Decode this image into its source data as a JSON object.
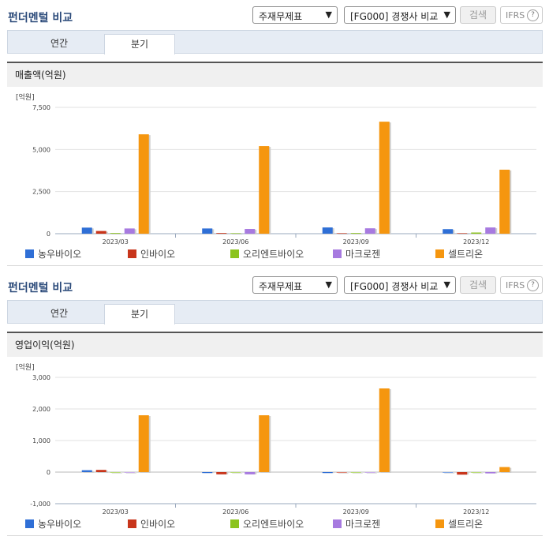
{
  "colors": {
    "농우바이오": "#2f6fd6",
    "인바이오": "#c8351b",
    "오리엔트바이오": "#8cc41f",
    "마크로젠": "#a77ae0",
    "셀트리온": "#f5960f"
  },
  "panels": [
    {
      "title": "펀더멘털 비교",
      "select_a": "주재무제표",
      "select_b": "[FG000] 경쟁사 비교",
      "search_label": "검색",
      "ifrs_label": "IFRS",
      "help_glyph": "?",
      "tabs": [
        "연간",
        "분기"
      ],
      "active_tab": "분기",
      "section_title": "매출액(억원)",
      "unit": "[억원]"
    },
    {
      "title": "펀더멘털 비교",
      "select_a": "주재무제표",
      "select_b": "[FG000] 경쟁사 비교",
      "search_label": "검색",
      "ifrs_label": "IFRS",
      "help_glyph": "?",
      "tabs": [
        "연간",
        "분기"
      ],
      "active_tab": "분기",
      "section_title": "영업이익(억원)",
      "unit": "[억원]"
    }
  ],
  "chart_data": [
    {
      "type": "bar",
      "title": "매출액(억원)",
      "ylabel": "[억원]",
      "categories": [
        "2023/03",
        "2023/06",
        "2023/09",
        "2023/12"
      ],
      "ylim": [
        0,
        7500
      ],
      "yticks": [
        0,
        2500,
        5000,
        7500
      ],
      "ytick_labels": [
        "0",
        "2,500",
        "5,000",
        "7,500"
      ],
      "grid": true,
      "legend": "bottom",
      "series": [
        {
          "name": "농우바이오",
          "values": [
            360,
            310,
            370,
            270
          ]
        },
        {
          "name": "인바이오",
          "values": [
            160,
            40,
            30,
            30
          ]
        },
        {
          "name": "오리엔트바이오",
          "values": [
            40,
            30,
            40,
            70
          ]
        },
        {
          "name": "마크로젠",
          "values": [
            310,
            280,
            320,
            370
          ]
        },
        {
          "name": "셀트리온",
          "values": [
            5900,
            5200,
            6650,
            3800
          ]
        }
      ]
    },
    {
      "type": "bar",
      "title": "영업이익(억원)",
      "ylabel": "[억원]",
      "categories": [
        "2023/03",
        "2023/06",
        "2023/09",
        "2023/12"
      ],
      "ylim": [
        -1000,
        3000
      ],
      "yticks": [
        -1000,
        0,
        1000,
        2000,
        3000
      ],
      "ytick_labels": [
        "-1,000",
        "0",
        "1,000",
        "2,000",
        "3,000"
      ],
      "grid": true,
      "legend": "bottom",
      "series": [
        {
          "name": "농우바이오",
          "values": [
            60,
            -30,
            -30,
            0
          ]
        },
        {
          "name": "인바이오",
          "values": [
            70,
            -70,
            0,
            -80
          ]
        },
        {
          "name": "오리엔트바이오",
          "values": [
            0,
            0,
            0,
            0
          ]
        },
        {
          "name": "마크로젠",
          "values": [
            0,
            -70,
            0,
            -40
          ]
        },
        {
          "name": "셀트리온",
          "values": [
            1800,
            1800,
            2650,
            160
          ]
        }
      ]
    }
  ]
}
